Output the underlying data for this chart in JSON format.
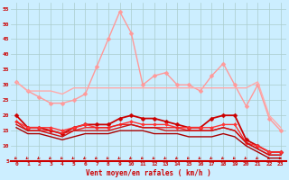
{
  "xlabel": "Vent moyen/en rafales ( km/h )",
  "bg_color": "#cceeff",
  "grid_color": "#aacccc",
  "x": [
    0,
    1,
    2,
    3,
    4,
    5,
    6,
    7,
    8,
    9,
    10,
    11,
    12,
    13,
    14,
    15,
    16,
    17,
    18,
    19,
    20,
    21,
    22,
    23
  ],
  "series": [
    {
      "y": [
        31,
        28,
        26,
        24,
        24,
        25,
        27,
        36,
        45,
        54,
        47,
        30,
        33,
        34,
        30,
        30,
        28,
        33,
        37,
        30,
        23,
        30,
        19,
        15
      ],
      "color": "#ff9999",
      "marker": "D",
      "lw": 1.0,
      "ms": 2.5
    },
    {
      "y": [
        31,
        28,
        28,
        28,
        27,
        29,
        29,
        29,
        29,
        29,
        29,
        29,
        29,
        29,
        29,
        29,
        29,
        29,
        29,
        29,
        29,
        31,
        20,
        16
      ],
      "color": "#ffaaaa",
      "marker": null,
      "lw": 1.0
    },
    {
      "y": [
        20,
        16,
        16,
        15,
        14,
        16,
        17,
        17,
        17,
        19,
        20,
        19,
        19,
        18,
        17,
        16,
        16,
        19,
        20,
        20,
        12,
        10,
        8,
        8
      ],
      "color": "#cc0000",
      "marker": "D",
      "lw": 1.3,
      "ms": 2.5
    },
    {
      "y": [
        18,
        16,
        16,
        16,
        15,
        16,
        17,
        16,
        16,
        17,
        18,
        17,
        17,
        17,
        16,
        16,
        16,
        16,
        17,
        17,
        11,
        10,
        8,
        8
      ],
      "color": "#ff3333",
      "marker": "D",
      "lw": 1.0,
      "ms": 2.0
    },
    {
      "y": [
        18,
        15,
        15,
        15,
        14,
        15,
        16,
        16,
        16,
        17,
        17,
        16,
        16,
        16,
        16,
        15,
        15,
        15,
        16,
        15,
        11,
        9,
        7,
        7
      ],
      "color": "#ee2222",
      "marker": null,
      "lw": 1.0
    },
    {
      "y": [
        17,
        15,
        15,
        14,
        13,
        15,
        15,
        15,
        15,
        16,
        17,
        16,
        16,
        15,
        15,
        15,
        15,
        15,
        16,
        15,
        11,
        9,
        7,
        7
      ],
      "color": "#cc1111",
      "marker": null,
      "lw": 1.0
    },
    {
      "y": [
        16,
        14,
        14,
        13,
        12,
        13,
        14,
        14,
        14,
        15,
        15,
        15,
        14,
        14,
        14,
        13,
        13,
        13,
        14,
        13,
        10,
        8,
        6,
        6
      ],
      "color": "#aa0000",
      "marker": null,
      "lw": 1.0
    }
  ],
  "ylim": [
    5,
    57
  ],
  "yticks": [
    5,
    10,
    15,
    20,
    25,
    30,
    35,
    40,
    45,
    50,
    55
  ],
  "xticks": [
    0,
    1,
    2,
    3,
    4,
    5,
    6,
    7,
    8,
    9,
    10,
    11,
    12,
    13,
    14,
    15,
    16,
    17,
    18,
    19,
    20,
    21,
    22,
    23
  ]
}
